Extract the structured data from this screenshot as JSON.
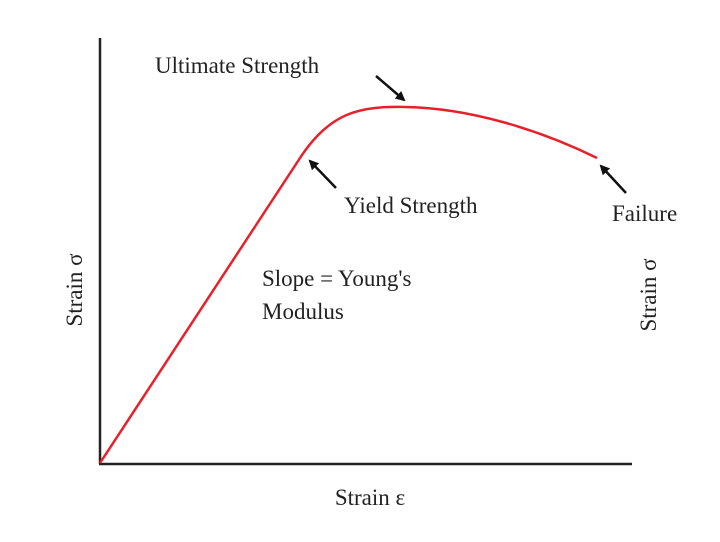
{
  "labels": {
    "ultimate": "Ultimate Strength",
    "yield": "Yield Strength",
    "failure": "Failure",
    "slope_line1": "Slope = Young's",
    "slope_line2": "Modulus",
    "y_axis": "Strain σ",
    "y_axis_right": "Strain σ",
    "x_axis": "Strain ε"
  },
  "colors": {
    "curve": "#e8202a",
    "axes": "#222222",
    "arrows": "#111111"
  }
}
